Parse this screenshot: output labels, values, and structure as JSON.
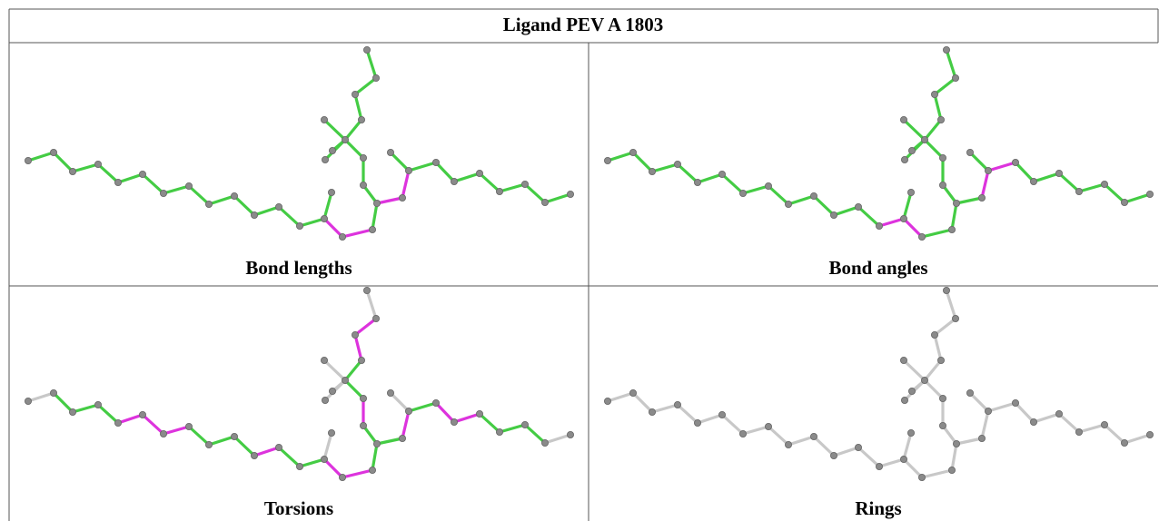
{
  "title": "Ligand PEV A 1803",
  "panels": [
    {
      "label": "Bond lengths"
    },
    {
      "label": "Bond angles"
    },
    {
      "label": "Torsions"
    },
    {
      "label": "Rings"
    }
  ]
}
